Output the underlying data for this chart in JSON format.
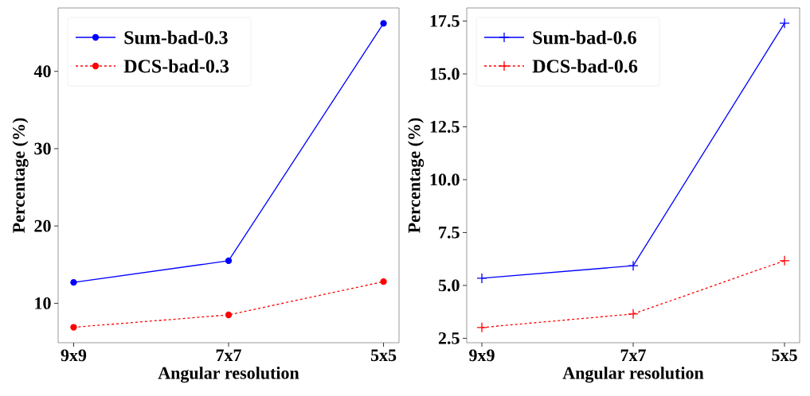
{
  "chart_data": [
    {
      "type": "line",
      "xlabel": "Angular resolution",
      "ylabel": "Percentage (%)",
      "categories": [
        "9x9",
        "7x7",
        "5x5"
      ],
      "ylim": [
        4.9,
        48.2
      ],
      "yticks": [
        10,
        20,
        30,
        40
      ],
      "legend": "top left",
      "marker": "circle",
      "series": [
        {
          "name": "Sum-bad-0.3",
          "color": "#0000ff",
          "line_style": "solid",
          "values": [
            12.7,
            15.5,
            46.2
          ]
        },
        {
          "name": "DCS-bad-0.3",
          "color": "#ff0000",
          "line_style": "dashed",
          "values": [
            6.9,
            8.5,
            12.8
          ]
        }
      ]
    },
    {
      "type": "line",
      "xlabel": "Angular resolution",
      "ylabel": "Percentage (%)",
      "categories": [
        "9x9",
        "7x7",
        "5x5"
      ],
      "ylim": [
        2.29,
        18.12
      ],
      "yticks": [
        2.5,
        {
          "value": 5,
          "label": "5.0"
        },
        7.5,
        {
          "value": 10,
          "label": "10.0"
        },
        12.5,
        {
          "value": 15,
          "label": "15.0"
        },
        17.5
      ],
      "legend": "top left",
      "marker": "cross",
      "series": [
        {
          "name": "Sum-bad-0.6",
          "color": "#0000ff",
          "line_style": "solid",
          "values": [
            5.34,
            5.93,
            17.4
          ]
        },
        {
          "name": "DCS-bad-0.6",
          "color": "#ff0000",
          "line_style": "dashed",
          "values": [
            3.01,
            3.65,
            6.17
          ]
        }
      ]
    }
  ]
}
